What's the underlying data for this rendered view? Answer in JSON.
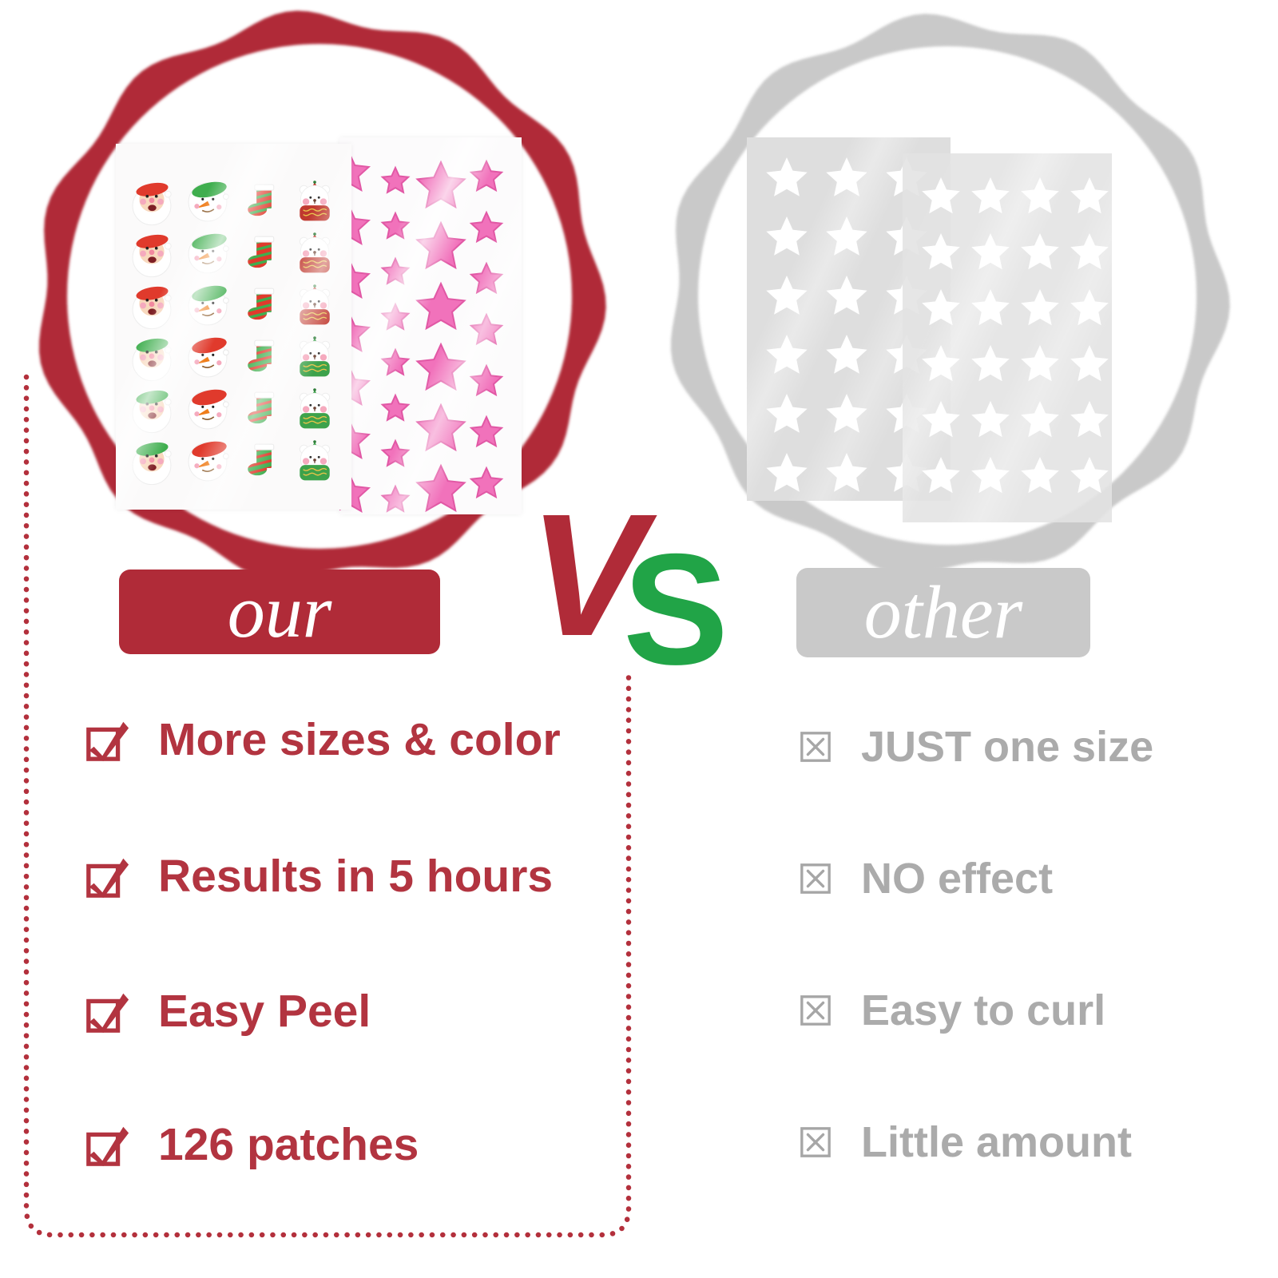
{
  "colors": {
    "red": "#b02b38",
    "red_text": "#b23440",
    "green": "#21a447",
    "gray_ring": "#c9c9c9",
    "gray_banner": "#c9c9c9",
    "gray_text": "#ababab",
    "gray_box": "#a6a6a6",
    "pink_star": "#f172bb",
    "pink_star_edge": "#e158a5",
    "white_star": "#ffffff"
  },
  "vs": {
    "v": "V",
    "s": "S"
  },
  "left": {
    "banner_label": "our",
    "points": [
      "More sizes & color",
      "Results in 5 hours",
      "Easy Peel",
      "126 patches"
    ],
    "sticker_sheet": {
      "columns": [
        "santa",
        "snowman",
        "stocking",
        "bear"
      ],
      "rows": 6,
      "top_rows_variant": "red",
      "bottom_rows_variant": "green",
      "palette": {
        "xmas_red": "#e03a2c",
        "xmas_green": "#3fae4e",
        "scarf_red": "#c0392f",
        "scarf_green": "#3da24b",
        "gold": "#e8c34a",
        "skin": "#f8d8bd",
        "carrot": "#ef7d1a",
        "cheek": "#f5aabe"
      }
    },
    "star_sheet": {
      "color": "#f172bb",
      "columns": [
        {
          "size": 26,
          "count": 7
        },
        {
          "size": 17,
          "count": 8
        },
        {
          "size": 31,
          "count": 6
        },
        {
          "size": 20,
          "count": 7
        }
      ]
    }
  },
  "right": {
    "banner_label": "other",
    "points": [
      "JUST one size",
      "NO effect",
      "Easy to curl",
      "Little amount"
    ],
    "star_color": "#ffffff",
    "sheets": [
      {
        "cols": 3,
        "rows": 6
      },
      {
        "cols": 4,
        "rows": 6
      }
    ]
  }
}
